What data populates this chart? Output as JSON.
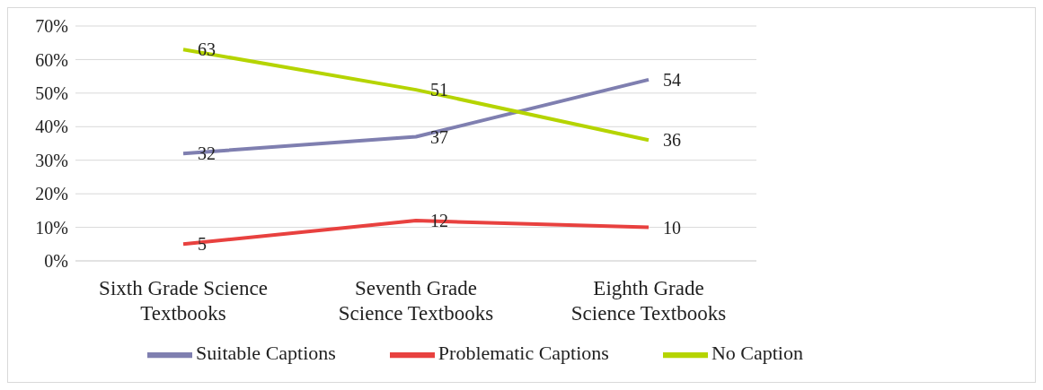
{
  "chart_data": {
    "type": "line",
    "categories": [
      "Sixth Grade Science Textbooks",
      "Seventh Grade Science Textbooks",
      "Eighth Grade Science Textbooks"
    ],
    "series": [
      {
        "name": "Suitable Captions",
        "color": "#7f7fb0",
        "values": [
          32,
          37,
          54
        ]
      },
      {
        "name": "Problematic Captions",
        "color": "#e8413f",
        "values": [
          5,
          12,
          10
        ]
      },
      {
        "name": "No Caption",
        "color": "#b5d400",
        "values": [
          63,
          51,
          36
        ]
      }
    ],
    "ylim": [
      0,
      70
    ],
    "yticks": [
      {
        "value": 0,
        "label": "0%"
      },
      {
        "value": 10,
        "label": "10%"
      },
      {
        "value": 20,
        "label": "20%"
      },
      {
        "value": 30,
        "label": "30%"
      },
      {
        "value": 40,
        "label": "40%"
      },
      {
        "value": 50,
        "label": "50%"
      },
      {
        "value": 60,
        "label": "60%"
      },
      {
        "value": 70,
        "label": "70%"
      }
    ],
    "grid": "y",
    "legend": "bottom",
    "data_labels": true,
    "marker": "none",
    "line_style": "solid"
  }
}
